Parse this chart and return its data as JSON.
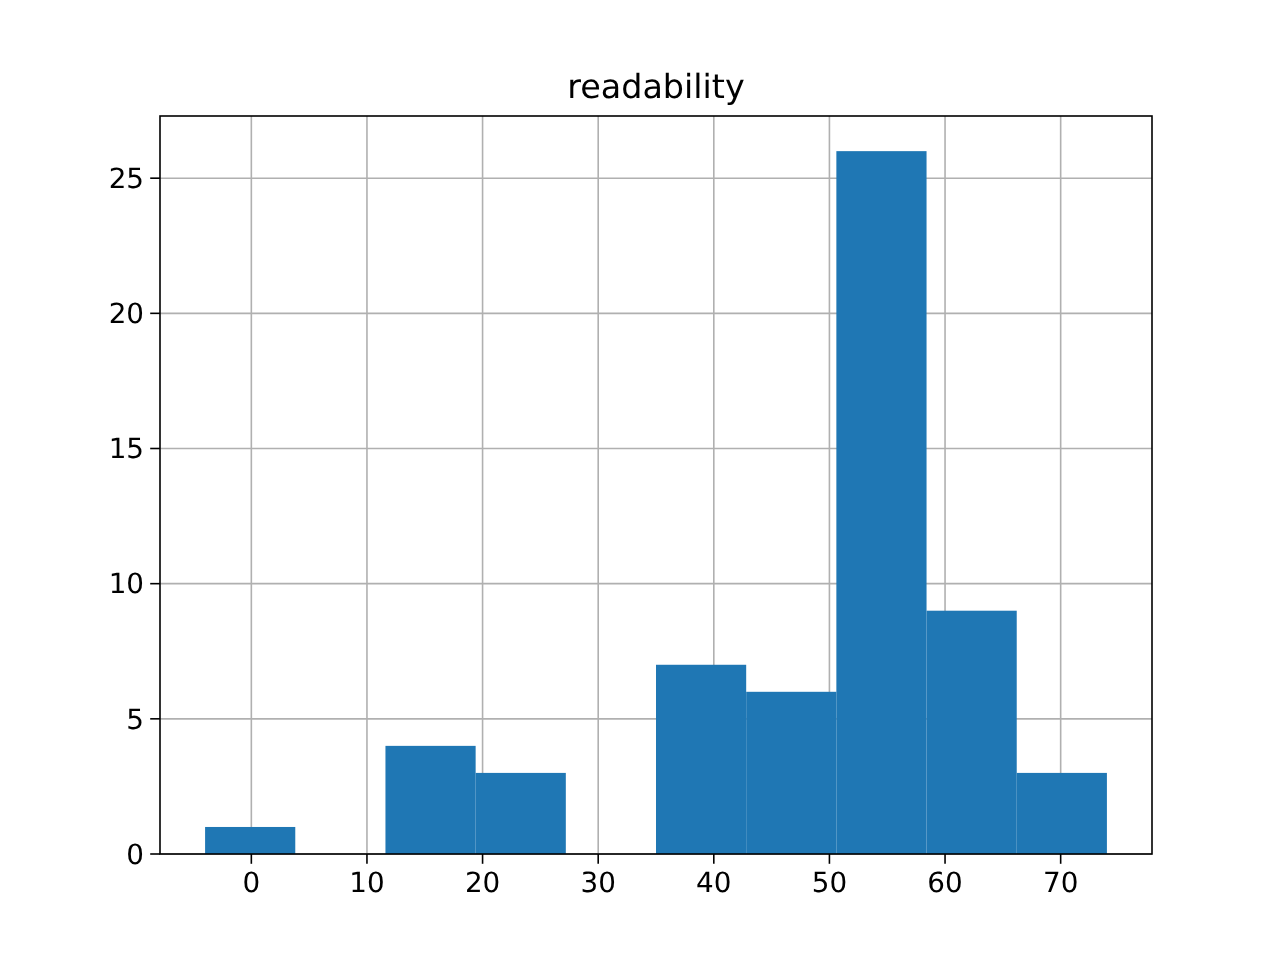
{
  "chart_data": {
    "type": "histogram",
    "title": "readability",
    "bins": [
      -4,
      3.8,
      11.6,
      19.4,
      27.2,
      35,
      42.8,
      50.6,
      58.4,
      66.2,
      74
    ],
    "values": [
      1,
      0,
      4,
      3,
      0,
      7,
      6,
      26,
      9,
      3
    ],
    "color": "#1f77b4",
    "xlim": [
      -7.9,
      77.9
    ],
    "xticks": [
      0,
      10,
      20,
      30,
      40,
      50,
      60,
      70
    ],
    "ylim": [
      0,
      27.3
    ],
    "yticks": [
      0,
      5,
      10,
      15,
      20,
      25
    ],
    "grid": true
  }
}
